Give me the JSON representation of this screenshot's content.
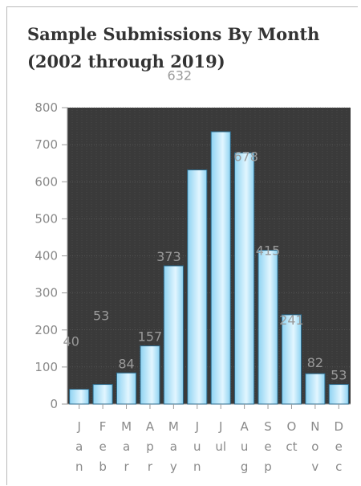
{
  "chart_data": {
    "type": "bar",
    "title_lines": [
      "Sample Submissions By Month",
      "(2002 through 2019)"
    ],
    "categories": [
      [
        "J",
        "a",
        "n"
      ],
      [
        "F",
        "e",
        "b"
      ],
      [
        "M",
        "a",
        "r"
      ],
      [
        "A",
        "p",
        "r"
      ],
      [
        "M",
        "a",
        "y"
      ],
      [
        "J",
        "u",
        "n"
      ],
      [
        "J",
        "ul",
        ""
      ],
      [
        "A",
        "u",
        "g"
      ],
      [
        "S",
        "e",
        "p"
      ],
      [
        "O",
        "ct",
        ""
      ],
      [
        "N",
        "o",
        "v"
      ],
      [
        "D",
        "e",
        "c"
      ]
    ],
    "values": [
      40,
      53,
      84,
      157,
      373,
      632,
      735,
      678,
      415,
      241,
      82,
      53
    ],
    "data_labels": [
      "40",
      "53",
      "84",
      "157",
      "373",
      "632",
      "",
      "678",
      "415",
      "241",
      "82",
      "53"
    ],
    "ylim": [
      0,
      800
    ],
    "yticks": [
      0,
      100,
      200,
      300,
      400,
      500,
      600,
      700,
      800
    ],
    "grid": true,
    "legend": "none",
    "colors": {
      "plot_bg": "#3a3a3a",
      "grid": "#6a6a6a",
      "bar_fill_light": "#e2f6ff",
      "bar_fill_dark": "#8fd3f2",
      "bar_stroke": "#2d6b8c"
    }
  }
}
